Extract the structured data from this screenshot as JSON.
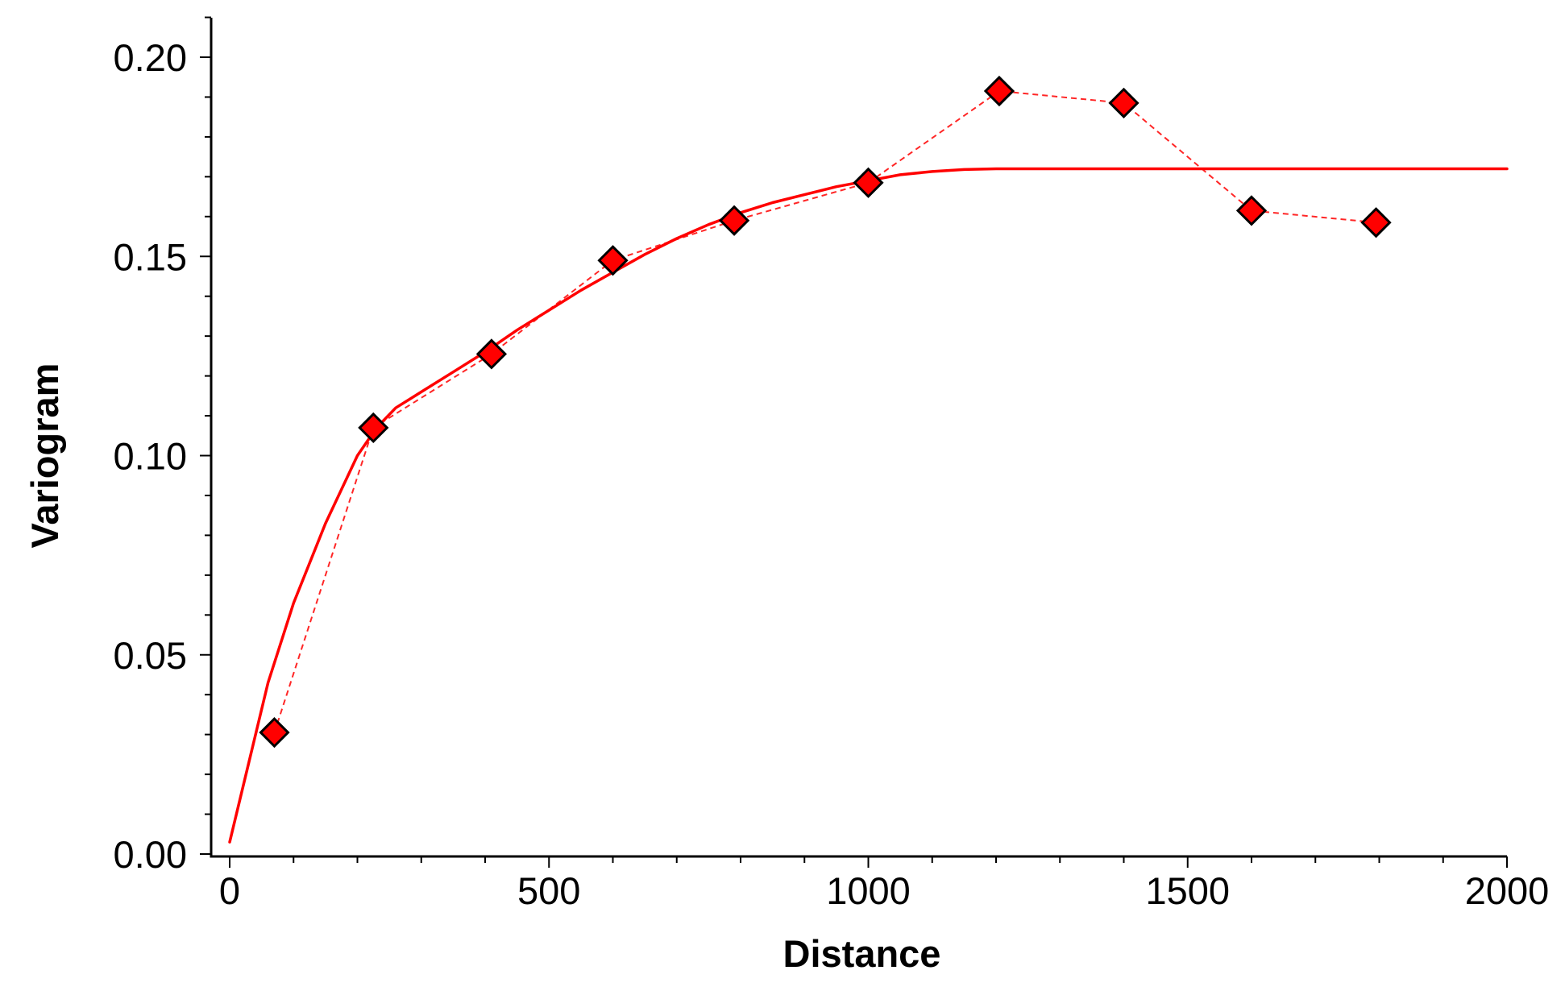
{
  "chart_data": {
    "type": "scatter",
    "title": "",
    "xlabel": "Distance",
    "ylabel": "Variogram",
    "xlim": [
      0,
      2000
    ],
    "ylim": [
      0,
      0.2
    ],
    "x_ticks": [
      0,
      500,
      1000,
      1500,
      2000
    ],
    "x_tick_labels": [
      "0",
      "500",
      "1000",
      "1500",
      "2000"
    ],
    "y_ticks": [
      0,
      0.05,
      0.1,
      0.15,
      0.2
    ],
    "y_tick_labels": [
      "0.00",
      "0.05",
      "0.10",
      "0.15",
      "0.20"
    ],
    "x_minor_step": 100,
    "y_minor_step": 0.01,
    "grid": false,
    "series": [
      {
        "role": "empirical",
        "style": "diamond markers joined by dashed line",
        "color": "#ff0000",
        "x": [
          70,
          225,
          410,
          600,
          790,
          1000,
          1205,
          1400,
          1600,
          1795
        ],
        "y": [
          0.0305,
          0.107,
          0.1255,
          0.149,
          0.159,
          0.1685,
          0.1915,
          0.1885,
          0.1615,
          0.1585
        ]
      },
      {
        "role": "model",
        "style": "solid line",
        "color": "#ff0000",
        "x": [
          0,
          30,
          60,
          100,
          150,
          200,
          230,
          260,
          300,
          350,
          400,
          450,
          500,
          550,
          600,
          650,
          700,
          750,
          800,
          850,
          900,
          950,
          1000,
          1050,
          1100,
          1150,
          1200,
          1250,
          1300,
          1400,
          1600,
          1800,
          2000
        ],
        "y": [
          0.003,
          0.023,
          0.043,
          0.063,
          0.083,
          0.1,
          0.107,
          0.112,
          0.116,
          0.121,
          0.126,
          0.1315,
          0.1365,
          0.1415,
          0.146,
          0.1505,
          0.1545,
          0.158,
          0.161,
          0.1635,
          0.1655,
          0.1675,
          0.169,
          0.1705,
          0.1713,
          0.1718,
          0.172,
          0.172,
          0.172,
          0.172,
          0.172,
          0.172,
          0.172
        ]
      }
    ]
  }
}
